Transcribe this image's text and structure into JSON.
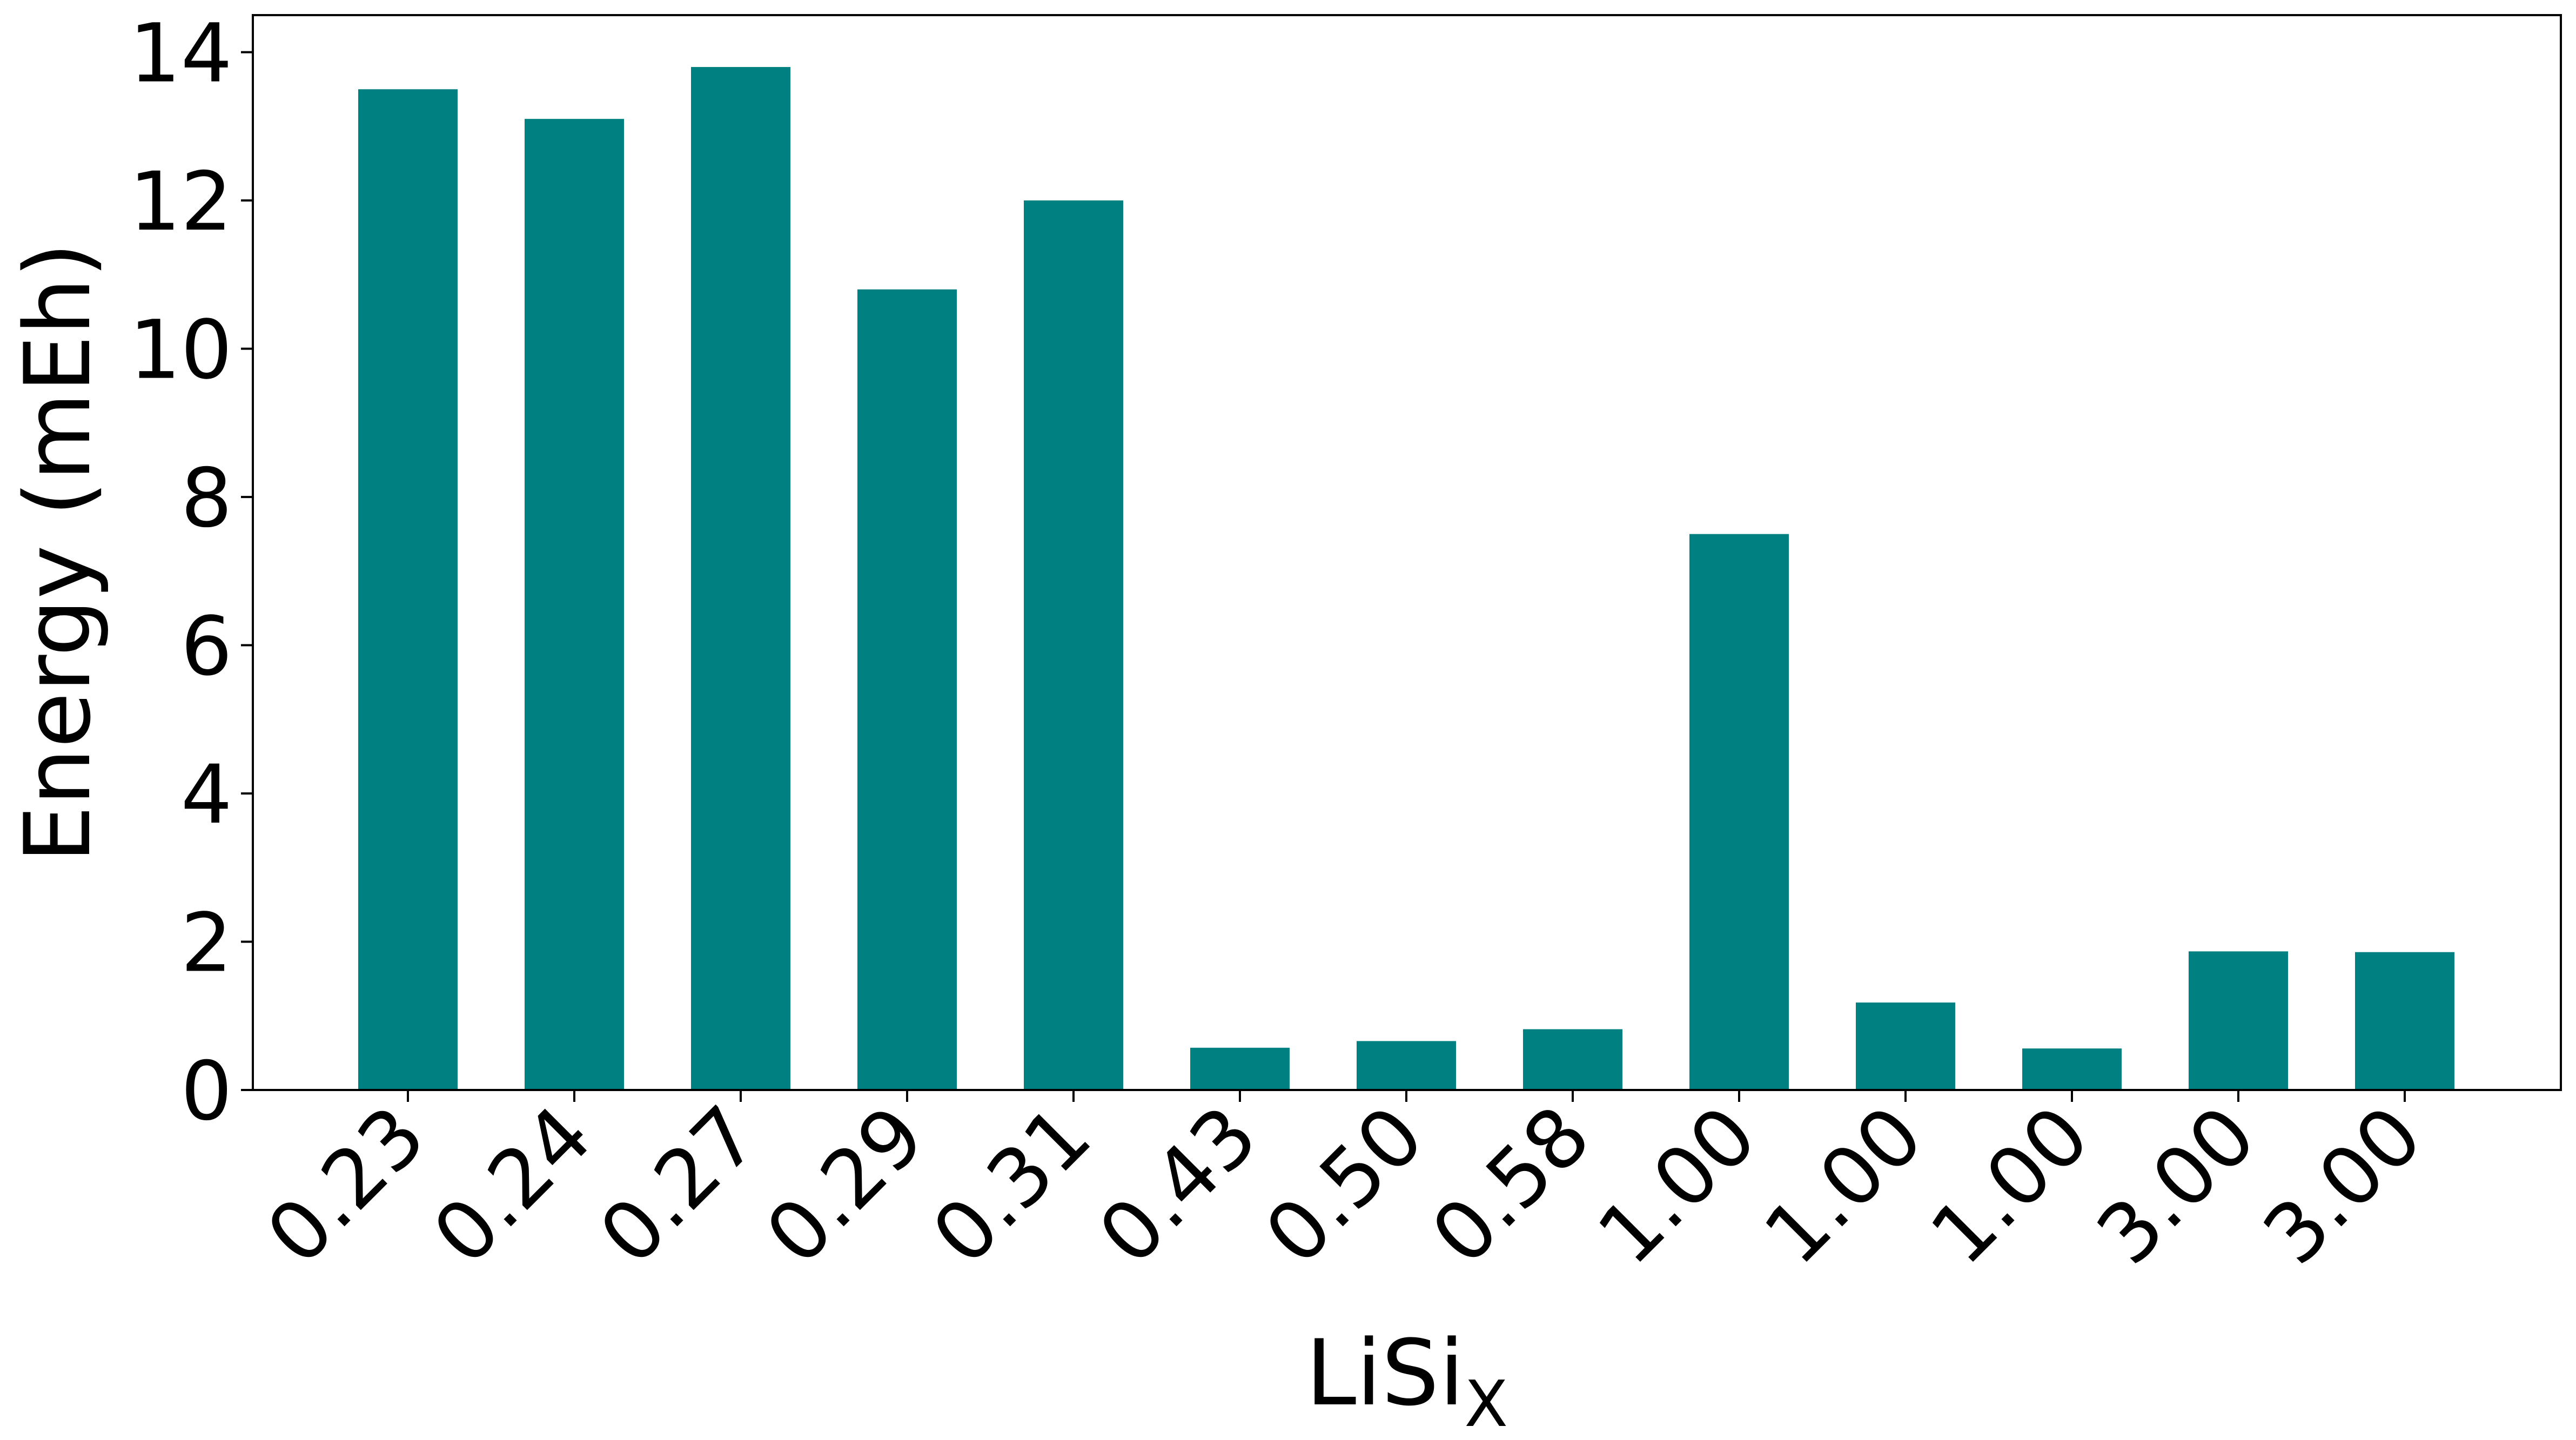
{
  "chart_data": {
    "type": "bar",
    "categories": [
      "0.23",
      "0.24",
      "0.27",
      "0.29",
      "0.31",
      "0.43",
      "0.50",
      "0.58",
      "1.00",
      "1.00",
      "1.00",
      "3.00",
      "3.00"
    ],
    "values": [
      13.5,
      13.1,
      13.8,
      10.8,
      12.0,
      0.57,
      0.66,
      0.82,
      7.5,
      1.18,
      0.56,
      1.87,
      1.86
    ],
    "ylim": [
      0,
      14.5
    ],
    "yticks": [
      "0",
      "2",
      "4",
      "6",
      "8",
      "10",
      "12",
      "14"
    ],
    "xlabel": "LiSi",
    "xlabel_subscript": "X",
    "ylabel": "Energy (mEh)",
    "bar_color": "#008080",
    "grid": false,
    "legend": false
  }
}
